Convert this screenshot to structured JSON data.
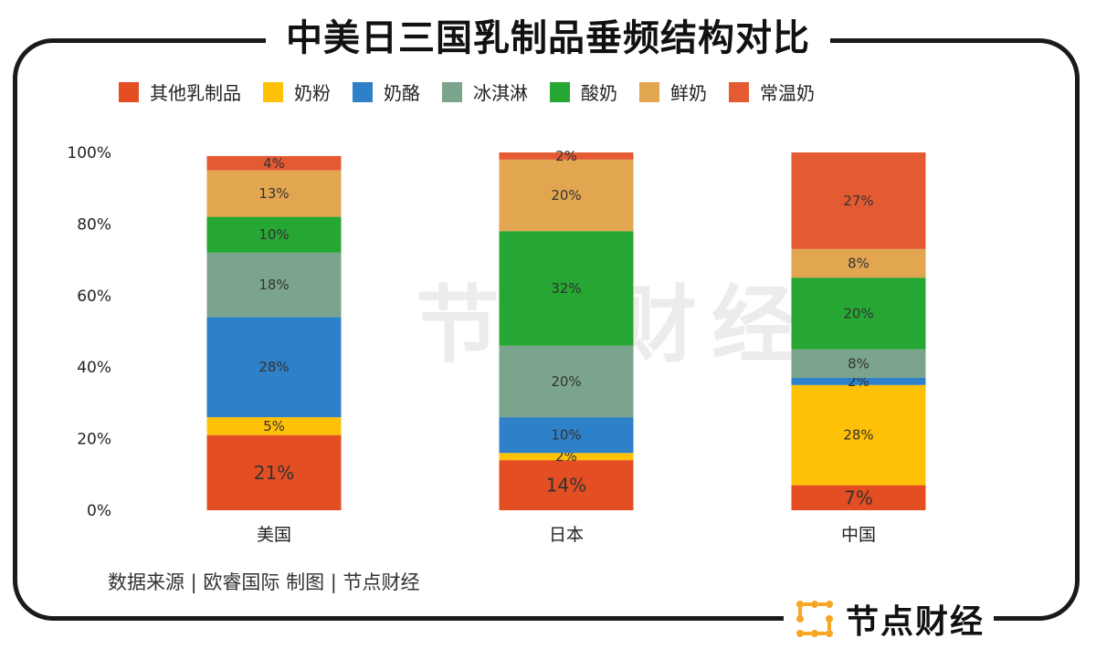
{
  "title": "中美日三国乳制品垂频结构对比",
  "watermark": "节点财经",
  "source_note": "数据来源 | 欧睿国际  制图 | 节点财经",
  "brand_name": "节点财经",
  "chart_data": {
    "type": "bar",
    "stacked": true,
    "categories": [
      "美国",
      "日本",
      "中国"
    ],
    "series": [
      {
        "name": "其他乳制品",
        "color": "#E34E22",
        "values": [
          21,
          14,
          7
        ],
        "labels": [
          "21%",
          "14%",
          "7%"
        ]
      },
      {
        "name": "奶粉",
        "color": "#FFC107",
        "values": [
          5,
          2,
          28
        ],
        "labels": [
          "5%",
          "2%",
          "28%"
        ]
      },
      {
        "name": "奶酪",
        "color": "#2E80C9",
        "values": [
          28,
          10,
          2
        ],
        "labels": [
          "28%",
          "10%",
          "2%"
        ]
      },
      {
        "name": "冰淇淋",
        "color": "#7BA48C",
        "values": [
          18,
          20,
          8
        ],
        "labels": [
          "18%",
          "20%",
          "8%"
        ]
      },
      {
        "name": "酸奶",
        "color": "#26A633",
        "values": [
          10,
          32,
          20
        ],
        "labels": [
          "10%",
          "32%",
          "20%"
        ]
      },
      {
        "name": "鲜奶",
        "color": "#E3A650",
        "values": [
          13,
          20,
          8
        ],
        "labels": [
          "13%",
          "20%",
          "8%"
        ]
      },
      {
        "name": "常温奶",
        "color": "#E45A32",
        "values": [
          4,
          2,
          27
        ],
        "labels": [
          "4%",
          "2%",
          "27%"
        ]
      }
    ],
    "yticks": [
      "0%",
      "20%",
      "40%",
      "60%",
      "80%",
      "100%"
    ],
    "ylim": [
      0,
      100
    ],
    "legend_position": "top-left"
  }
}
